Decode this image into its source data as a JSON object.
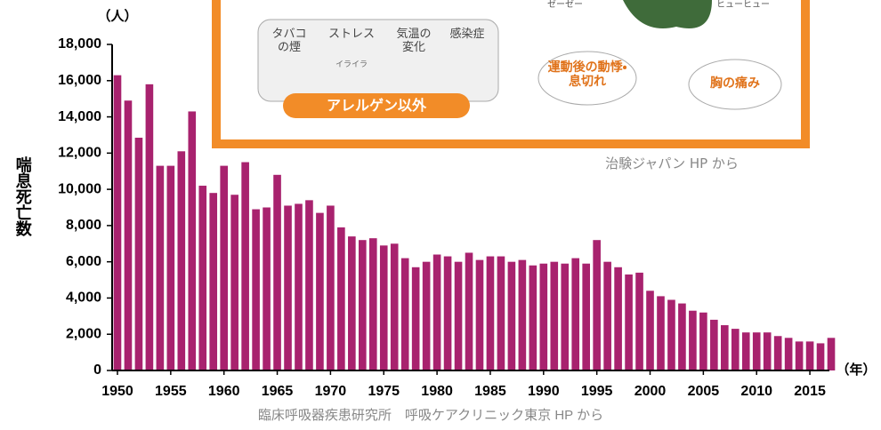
{
  "chart_data": {
    "type": "bar",
    "y_unit": "（人）",
    "x_unit": "（年）",
    "y_label": "喘息死亡数",
    "source": "臨床呼吸器疾患研究所　呼吸ケアクリニック東京 HP から",
    "color": "#a8226e",
    "x": [
      1950,
      1951,
      1952,
      1953,
      1954,
      1955,
      1956,
      1957,
      1958,
      1959,
      1960,
      1961,
      1962,
      1963,
      1964,
      1965,
      1966,
      1967,
      1968,
      1969,
      1970,
      1971,
      1972,
      1973,
      1974,
      1975,
      1976,
      1977,
      1978,
      1979,
      1980,
      1981,
      1982,
      1983,
      1984,
      1985,
      1986,
      1987,
      1988,
      1989,
      1990,
      1991,
      1992,
      1993,
      1994,
      1995,
      1996,
      1997,
      1998,
      1999,
      2000,
      2001,
      2002,
      2003,
      2004,
      2005,
      2006,
      2007,
      2008,
      2009,
      2010,
      2011,
      2012,
      2013,
      2014,
      2015,
      2016,
      2017
    ],
    "values": [
      16300,
      14900,
      12850,
      15800,
      11300,
      11300,
      12100,
      14300,
      10200,
      9800,
      11300,
      9700,
      11500,
      8900,
      9000,
      10800,
      9100,
      9200,
      9400,
      8700,
      9100,
      7900,
      7400,
      7200,
      7300,
      6900,
      7000,
      6200,
      5700,
      6000,
      6400,
      6300,
      6000,
      6500,
      6100,
      6300,
      6300,
      6000,
      6100,
      5800,
      5900,
      6000,
      5900,
      6200,
      5900,
      7200,
      6000,
      5700,
      5300,
      5400,
      4400,
      4100,
      3900,
      3700,
      3300,
      3200,
      2800,
      2500,
      2300,
      2100,
      2100,
      2100,
      1900,
      1800,
      1600,
      1600,
      1500,
      1800
    ],
    "xlim": [
      1949.5,
      2017.5
    ],
    "xticks": [
      1950,
      1955,
      1960,
      1965,
      1970,
      1975,
      1980,
      1985,
      1990,
      1995,
      2000,
      2005,
      2010,
      2015
    ],
    "ylim": [
      0,
      18000
    ],
    "yticks": [
      0,
      {
        "value": 2000,
        "label": "2,000"
      },
      {
        "value": 4000,
        "label": "4,000"
      },
      {
        "value": 6000,
        "label": "6,000"
      },
      {
        "value": 8000,
        "label": "8,000"
      },
      {
        "value": 10000,
        "label": "10,000"
      },
      {
        "value": 12000,
        "label": "12,000"
      },
      {
        "value": 14000,
        "label": "14,000"
      },
      {
        "value": 16000,
        "label": "16,000"
      },
      {
        "value": 18000,
        "label": "18,000"
      }
    ]
  },
  "illustration": {
    "triggers": [
      "タバコの煙",
      "ストレス",
      "気温の変化",
      "感染症"
    ],
    "irritation": "イライラ",
    "category": "アレルゲン以外",
    "sounds": [
      "ゼーゼー",
      "ヒューヒュー"
    ],
    "symptoms": [
      "運動後の動悸・息切れ",
      "胸の痛み"
    ],
    "credit": "治験ジャパン HP から"
  }
}
